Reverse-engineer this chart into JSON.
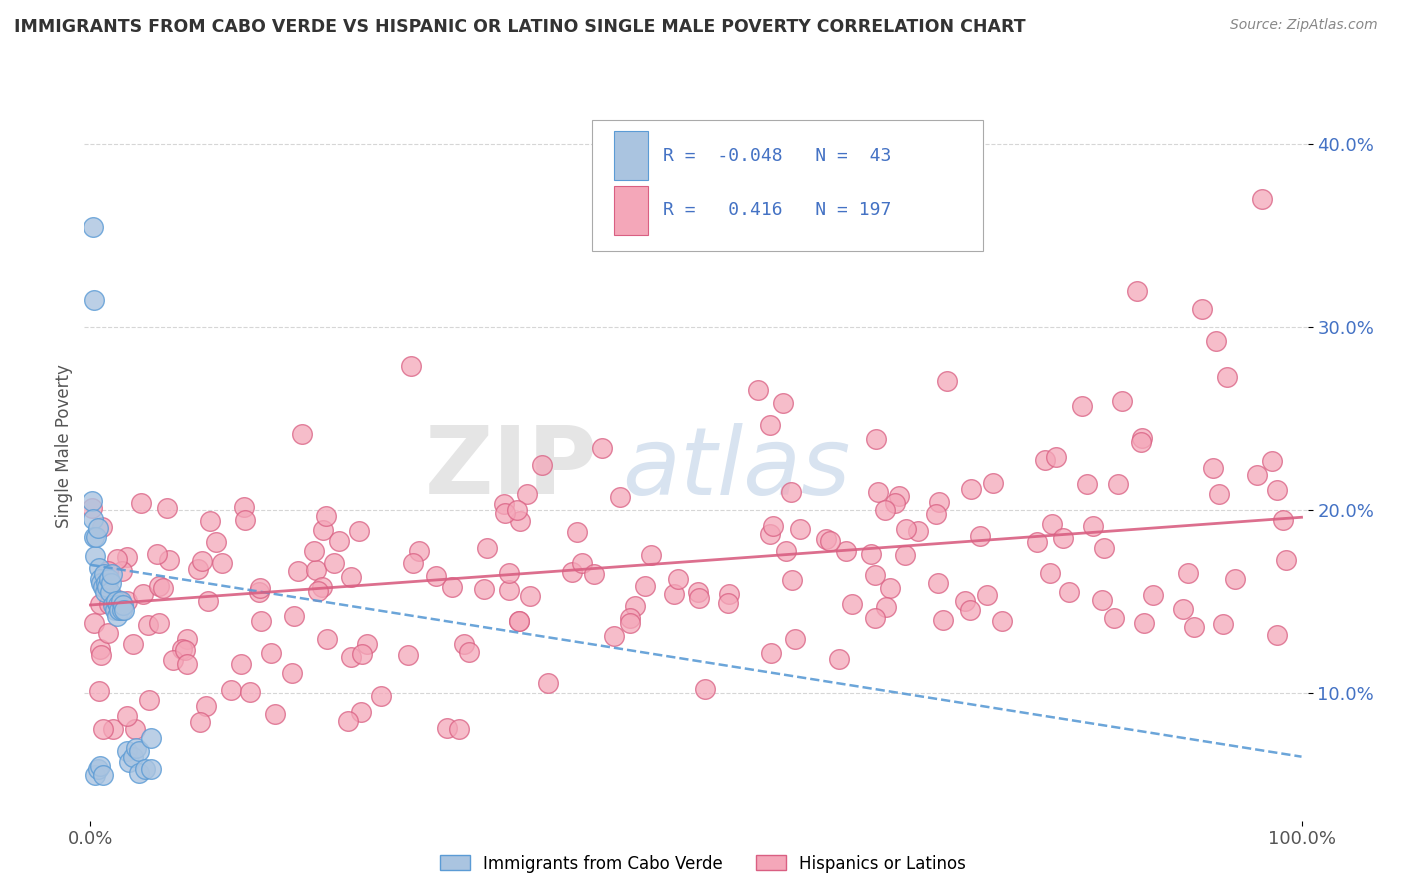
{
  "title": "IMMIGRANTS FROM CABO VERDE VS HISPANIC OR LATINO SINGLE MALE POVERTY CORRELATION CHART",
  "source": "Source: ZipAtlas.com",
  "ylabel": "Single Male Poverty",
  "yticks": [
    0.1,
    0.2,
    0.3,
    0.4
  ],
  "ytick_labels": [
    "10.0%",
    "20.0%",
    "30.0%",
    "40.0%"
  ],
  "xlim": [
    0.0,
    1.0
  ],
  "ylim": [
    0.03,
    0.44
  ],
  "r_blue": -0.048,
  "n_blue": 43,
  "r_pink": 0.416,
  "n_pink": 197,
  "legend_label_blue": "Immigrants from Cabo Verde",
  "legend_label_pink": "Hispanics or Latinos",
  "watermark_zip": "ZIP",
  "watermark_atlas": "atlas",
  "blue_scatter_color": "#aac4e0",
  "blue_edge_color": "#5b9bd5",
  "pink_scatter_color": "#f4a7b9",
  "pink_edge_color": "#d95f82",
  "blue_line_color": "#5b9bd5",
  "pink_line_color": "#d95f82",
  "background_color": "#ffffff",
  "grid_color": "#cccccc",
  "title_color": "#333333",
  "source_color": "#888888",
  "ytick_color": "#4472C4",
  "xtick_color": "#555555",
  "ylabel_color": "#555555"
}
